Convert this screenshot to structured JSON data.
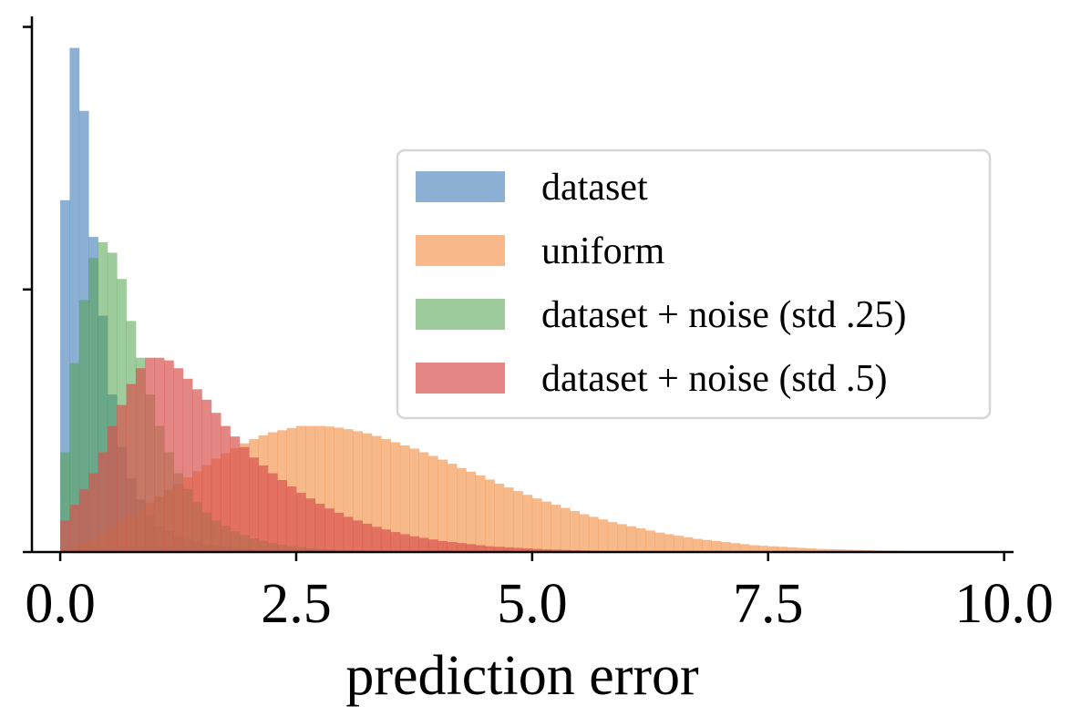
{
  "chart_data": {
    "type": "bar",
    "title": "",
    "xlabel": "prediction error",
    "ylabel": "",
    "xlim": [
      -0.3,
      10.1
    ],
    "ylim": [
      0,
      1.02
    ],
    "xticks": [
      0.0,
      2.5,
      5.0,
      7.5,
      10.0
    ],
    "xtick_labels": [
      "0.0",
      "2.5",
      "5.0",
      "7.5",
      "10.0"
    ],
    "yticks": [
      0.0,
      0.5,
      1.0
    ],
    "grid": false,
    "legend_position": "center-right",
    "bin_width": 0.1,
    "bin_start": 0.0,
    "series": [
      {
        "name": "dataset",
        "color": "#5b8ec2",
        "opacity": 0.7,
        "values": [
          0.67,
          0.96,
          0.84,
          0.6,
          0.45,
          0.3,
          0.2,
          0.14,
          0.1,
          0.07,
          0.05,
          0.04,
          0.03,
          0.025,
          0.02,
          0.015,
          0.012,
          0.01,
          0.008,
          0.006,
          0.005,
          0.004,
          0.003,
          0.002,
          0.002,
          0.001
        ]
      },
      {
        "name": "uniform",
        "color": "#f28e42",
        "opacity": 0.62,
        "values": [
          0.003,
          0.009,
          0.017,
          0.026,
          0.036,
          0.047,
          0.058,
          0.07,
          0.082,
          0.094,
          0.106,
          0.118,
          0.13,
          0.142,
          0.154,
          0.166,
          0.178,
          0.188,
          0.198,
          0.207,
          0.215,
          0.222,
          0.228,
          0.232,
          0.236,
          0.24,
          0.24,
          0.24,
          0.239,
          0.237,
          0.234,
          0.23,
          0.226,
          0.221,
          0.215,
          0.209,
          0.203,
          0.197,
          0.19,
          0.183,
          0.176,
          0.168,
          0.16,
          0.153,
          0.146,
          0.138,
          0.13,
          0.123,
          0.116,
          0.109,
          0.102,
          0.096,
          0.09,
          0.084,
          0.078,
          0.072,
          0.067,
          0.062,
          0.057,
          0.053,
          0.049,
          0.045,
          0.041,
          0.037,
          0.034,
          0.031,
          0.028,
          0.025,
          0.023,
          0.021,
          0.019,
          0.017,
          0.015,
          0.013,
          0.012,
          0.011,
          0.01,
          0.009,
          0.008,
          0.007,
          0.006,
          0.0055,
          0.005,
          0.0045,
          0.004,
          0.0035,
          0.003,
          0.0027,
          0.0024,
          0.0021,
          0.0018,
          0.0016,
          0.0014,
          0.0012,
          0.001,
          0.0009,
          0.0008,
          0.0007,
          0.0006,
          0.0005
        ]
      },
      {
        "name": "dataset + noise (std .25)",
        "color": "#4fa34a",
        "opacity": 0.55,
        "values": [
          0.19,
          0.36,
          0.48,
          0.56,
          0.59,
          0.57,
          0.52,
          0.44,
          0.37,
          0.3,
          0.24,
          0.19,
          0.15,
          0.12,
          0.095,
          0.075,
          0.06,
          0.05,
          0.04,
          0.032,
          0.026,
          0.021,
          0.017,
          0.014,
          0.011,
          0.009,
          0.007,
          0.006,
          0.005,
          0.004,
          0.003,
          0.0025,
          0.002,
          0.0015,
          0.001
        ]
      },
      {
        "name": "dataset + noise (std .5)",
        "color": "#d9534f",
        "opacity": 0.7,
        "values": [
          0.06,
          0.09,
          0.12,
          0.15,
          0.19,
          0.24,
          0.28,
          0.32,
          0.35,
          0.37,
          0.37,
          0.365,
          0.35,
          0.33,
          0.31,
          0.29,
          0.265,
          0.24,
          0.22,
          0.2,
          0.18,
          0.165,
          0.15,
          0.137,
          0.125,
          0.113,
          0.102,
          0.092,
          0.083,
          0.075,
          0.067,
          0.06,
          0.054,
          0.048,
          0.043,
          0.038,
          0.034,
          0.03,
          0.027,
          0.024,
          0.021,
          0.019,
          0.017,
          0.015,
          0.013,
          0.011,
          0.01,
          0.009,
          0.008,
          0.007,
          0.006,
          0.005,
          0.0045,
          0.004,
          0.0035,
          0.003,
          0.0025,
          0.002,
          0.0018,
          0.0015,
          0.0012,
          0.001
        ]
      }
    ]
  }
}
